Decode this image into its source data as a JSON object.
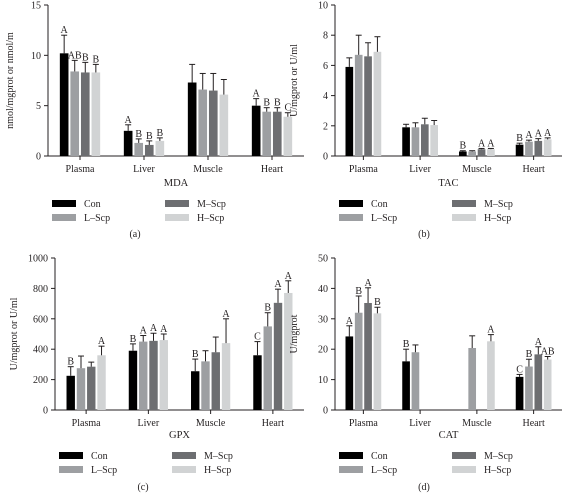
{
  "legend": [
    {
      "label": "Con",
      "color": "#000000"
    },
    {
      "label": "M–Scp",
      "color": "#6d6e71"
    },
    {
      "label": "L–Scp",
      "color": "#9d9fa2"
    },
    {
      "label": "H–Scp",
      "color": "#d1d3d4"
    }
  ],
  "chart_data": [
    {
      "panel": "(a)",
      "type": "bar",
      "xlabel": "MDA",
      "ylabel": "nmol/mgprot or nmol/m",
      "ylim": [
        0,
        15
      ],
      "yticks": [
        "0",
        "5",
        "10",
        "15"
      ],
      "categories": [
        "Plasma",
        "Liver",
        "Muscle",
        "Heart"
      ],
      "series": [
        {
          "name": "Con",
          "values": [
            10.2,
            2.5,
            7.3,
            5.0
          ],
          "errors": [
            1.8,
            0.6,
            1.8,
            0.7
          ],
          "letters": [
            "A",
            "A",
            "",
            "A"
          ]
        },
        {
          "name": "L–Scp",
          "values": [
            8.4,
            1.3,
            6.6,
            4.4
          ],
          "errors": [
            1.1,
            0.4,
            1.6,
            0.4
          ],
          "letters": [
            "AB",
            "B",
            "",
            "B"
          ]
        },
        {
          "name": "M–Scp",
          "values": [
            8.3,
            1.1,
            6.5,
            4.4
          ],
          "errors": [
            1.0,
            0.4,
            1.7,
            0.4
          ],
          "letters": [
            "B",
            "B",
            "",
            "B"
          ]
        },
        {
          "name": "H–Scp",
          "values": [
            8.3,
            1.5,
            6.1,
            3.9
          ],
          "errors": [
            0.8,
            0.3,
            1.5,
            0.4
          ],
          "letters": [
            "B",
            "B",
            "",
            "C"
          ]
        }
      ]
    },
    {
      "panel": "(b)",
      "type": "bar",
      "xlabel": "TAC",
      "ylabel": "U/mgprot or U/ml",
      "ylim": [
        0,
        10
      ],
      "yticks": [
        "0",
        "2",
        "4",
        "6",
        "8",
        "10"
      ],
      "categories": [
        "Plasma",
        "Liver",
        "Muscle",
        "Heart"
      ],
      "series": [
        {
          "name": "Con",
          "values": [
            5.9,
            1.9,
            0.3,
            0.75
          ],
          "errors": [
            0.6,
            0.2,
            0.05,
            0.1
          ],
          "letters": [
            "",
            "",
            "B",
            "B"
          ]
        },
        {
          "name": "L–Scp",
          "values": [
            6.7,
            1.9,
            0.3,
            0.95
          ],
          "errors": [
            1.3,
            0.3,
            0.05,
            0.1
          ],
          "letters": [
            "",
            "",
            "",
            "A"
          ]
        },
        {
          "name": "M–Scp",
          "values": [
            6.6,
            2.1,
            0.45,
            1.0
          ],
          "errors": [
            0.9,
            0.4,
            0.05,
            0.15
          ],
          "letters": [
            "",
            "",
            "A",
            "A"
          ]
        },
        {
          "name": "H–Scp",
          "values": [
            6.9,
            2.05,
            0.45,
            1.1
          ],
          "errors": [
            1.0,
            0.3,
            0.05,
            0.1
          ],
          "letters": [
            "",
            "",
            "A",
            "A"
          ]
        }
      ]
    },
    {
      "panel": "(c)",
      "type": "bar",
      "xlabel": "GPX",
      "ylabel": "U/mgprot or U/ml",
      "ylim": [
        0,
        1000
      ],
      "yticks": [
        "0",
        "200",
        "400",
        "600",
        "800",
        "1000"
      ],
      "categories": [
        "Plasma",
        "Liver",
        "Muscle",
        "Heart"
      ],
      "series": [
        {
          "name": "Con",
          "values": [
            225,
            390,
            255,
            360
          ],
          "errors": [
            60,
            45,
            80,
            90
          ],
          "letters": [
            "B",
            "B",
            "B",
            "C"
          ]
        },
        {
          "name": "L–Scp",
          "values": [
            275,
            450,
            320,
            550
          ],
          "errors": [
            80,
            40,
            70,
            90
          ],
          "letters": [
            "",
            "A",
            "",
            "B"
          ]
        },
        {
          "name": "M–Scp",
          "values": [
            285,
            455,
            380,
            705
          ],
          "errors": [
            30,
            50,
            100,
            90
          ],
          "letters": [
            "",
            "A",
            "",
            "A"
          ]
        },
        {
          "name": "H–Scp",
          "values": [
            360,
            460,
            440,
            770
          ],
          "errors": [
            60,
            40,
            160,
            80
          ],
          "letters": [
            "A",
            "A",
            "A",
            "A"
          ]
        }
      ]
    },
    {
      "panel": "(d)",
      "type": "bar",
      "xlabel": "CAT",
      "ylabel": "U/mgprot",
      "ylim": [
        0,
        50
      ],
      "yticks": [
        "0",
        "10",
        "20",
        "30",
        "40",
        "50"
      ],
      "categories": [
        "Plasma",
        "Liver",
        "Muscle",
        "Heart"
      ],
      "series": [
        {
          "name": "Con",
          "values": [
            24.2,
            16.0,
            null,
            10.9
          ],
          "errors": [
            3.5,
            4.0,
            null,
            0.8
          ],
          "letters": [
            "A",
            "B",
            "",
            "C"
          ]
        },
        {
          "name": "L–Scp",
          "values": [
            32.0,
            19.0,
            20.4,
            14.3
          ],
          "errors": [
            5.5,
            2.4,
            4.0,
            2.4
          ],
          "letters": [
            "B",
            "",
            "",
            "B"
          ]
        },
        {
          "name": "M–Scp",
          "values": [
            35.2,
            null,
            null,
            18.3
          ],
          "errors": [
            5.0,
            null,
            null,
            2.5
          ],
          "letters": [
            "A",
            "",
            "",
            "A"
          ]
        },
        {
          "name": "H–Scp",
          "values": [
            31.8,
            null,
            22.6,
            16.6
          ],
          "errors": [
            2.0,
            null,
            2.2,
            1.0
          ],
          "letters": [
            "B",
            "",
            "A",
            "AB"
          ]
        }
      ]
    }
  ]
}
